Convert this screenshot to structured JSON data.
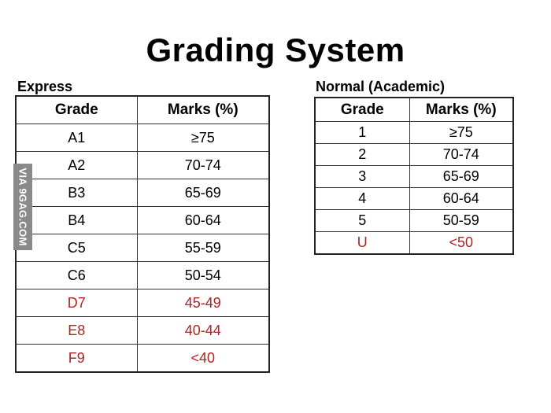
{
  "title": "Grading System",
  "watermark": "VIA 9GAG.COM",
  "express": {
    "label": "Express",
    "headers": [
      "Grade",
      "Marks (%)"
    ],
    "rows": [
      {
        "grade": "A1",
        "marks": "≥75"
      },
      {
        "grade": "A2",
        "marks": "70-74"
      },
      {
        "grade": "B3",
        "marks": "65-69"
      },
      {
        "grade": "B4",
        "marks": "60-64"
      },
      {
        "grade": "C5",
        "marks": "55-59"
      },
      {
        "grade": "C6",
        "marks": "50-54"
      },
      {
        "grade": "D7",
        "marks": "45-49"
      },
      {
        "grade": "E8",
        "marks": "40-44"
      },
      {
        "grade": "F9",
        "marks": "<40"
      }
    ]
  },
  "normal": {
    "label": "Normal (Academic)",
    "headers": [
      "Grade",
      "Marks (%)"
    ],
    "rows": [
      {
        "grade": "1",
        "marks": "≥75"
      },
      {
        "grade": "2",
        "marks": "70-74"
      },
      {
        "grade": "3",
        "marks": "65-69"
      },
      {
        "grade": "4",
        "marks": "60-64"
      },
      {
        "grade": "5",
        "marks": "50-59"
      },
      {
        "grade": "U",
        "marks": "<50"
      }
    ]
  },
  "colors": {
    "pass_text": "#000000",
    "fail_text": "#b22222",
    "watermark_bg": "#8a8a8a"
  }
}
